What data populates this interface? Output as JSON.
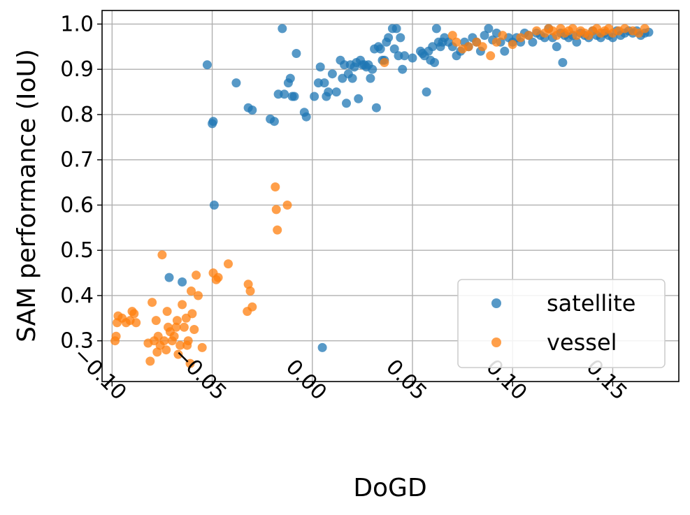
{
  "chart_data": {
    "type": "scatter",
    "xlabel": "DoGD",
    "ylabel": "SAM performance (IoU)",
    "xlim": [
      -0.105,
      0.183
    ],
    "ylim": [
      0.21,
      1.03
    ],
    "xticks": [
      -0.1,
      -0.05,
      0.0,
      0.05,
      0.1,
      0.15
    ],
    "xtick_labels": [
      "−0.10",
      "−0.05",
      "0.00",
      "0.05",
      "0.10",
      "0.15"
    ],
    "yticks": [
      0.3,
      0.4,
      0.5,
      0.6,
      0.7,
      0.8,
      0.9,
      1.0
    ],
    "ytick_labels": [
      "0.3",
      "0.4",
      "0.5",
      "0.6",
      "0.7",
      "0.8",
      "0.9",
      "1.0"
    ],
    "grid": true,
    "legend_position": "lower-right",
    "series": [
      {
        "name": "satellite",
        "color": "#1f77b4",
        "x": [
          -0.0715,
          -0.065,
          -0.0525,
          -0.05,
          -0.0495,
          -0.049,
          -0.038,
          -0.032,
          -0.03,
          -0.021,
          -0.019,
          -0.017,
          -0.015,
          -0.014,
          -0.012,
          -0.011,
          -0.01,
          -0.009,
          -0.008,
          -0.004,
          -0.003,
          0.001,
          0.003,
          0.004,
          0.005,
          0.006,
          0.007,
          0.008,
          0.01,
          0.012,
          0.014,
          0.015,
          0.016,
          0.017,
          0.018,
          0.019,
          0.02,
          0.021,
          0.022,
          0.023,
          0.024,
          0.025,
          0.026,
          0.027,
          0.028,
          0.029,
          0.03,
          0.031,
          0.032,
          0.033,
          0.034,
          0.035,
          0.036,
          0.037,
          0.038,
          0.04,
          0.041,
          0.042,
          0.043,
          0.044,
          0.045,
          0.046,
          0.05,
          0.054,
          0.055,
          0.056,
          0.057,
          0.058,
          0.059,
          0.06,
          0.061,
          0.062,
          0.063,
          0.064,
          0.065,
          0.066,
          0.068,
          0.07,
          0.072,
          0.074,
          0.076,
          0.078,
          0.08,
          0.082,
          0.084,
          0.086,
          0.088,
          0.09,
          0.092,
          0.094,
          0.096,
          0.098,
          0.1,
          0.102,
          0.104,
          0.106,
          0.108,
          0.11,
          0.112,
          0.114,
          0.116,
          0.118,
          0.12,
          0.122,
          0.124,
          0.125,
          0.126,
          0.128,
          0.13,
          0.132,
          0.134,
          0.136,
          0.138,
          0.14,
          0.142,
          0.144,
          0.146,
          0.148,
          0.15,
          0.152,
          0.154,
          0.156,
          0.158,
          0.16,
          0.162,
          0.164,
          0.166,
          0.168
        ],
        "y": [
          0.44,
          0.43,
          0.91,
          0.78,
          0.785,
          0.6,
          0.87,
          0.815,
          0.81,
          0.79,
          0.785,
          0.845,
          0.99,
          0.845,
          0.87,
          0.88,
          0.84,
          0.84,
          0.935,
          0.805,
          0.795,
          0.84,
          0.87,
          0.905,
          0.285,
          0.87,
          0.84,
          0.85,
          0.89,
          0.85,
          0.92,
          0.88,
          0.91,
          0.825,
          0.89,
          0.91,
          0.88,
          0.905,
          0.915,
          0.835,
          0.92,
          0.91,
          0.91,
          0.905,
          0.91,
          0.88,
          0.9,
          0.945,
          0.815,
          0.95,
          0.945,
          0.92,
          0.92,
          0.96,
          0.97,
          0.99,
          0.945,
          0.99,
          0.93,
          0.97,
          0.9,
          0.93,
          0.925,
          0.94,
          0.935,
          0.93,
          0.85,
          0.94,
          0.92,
          0.95,
          0.915,
          0.99,
          0.96,
          0.95,
          0.96,
          0.97,
          0.96,
          0.95,
          0.93,
          0.94,
          0.96,
          0.95,
          0.97,
          0.96,
          0.94,
          0.975,
          0.99,
          0.965,
          0.98,
          0.96,
          0.94,
          0.97,
          0.96,
          0.97,
          0.96,
          0.98,
          0.975,
          0.96,
          0.98,
          0.975,
          0.97,
          0.99,
          0.97,
          0.95,
          0.98,
          0.915,
          0.975,
          0.97,
          0.975,
          0.96,
          0.98,
          0.975,
          0.97,
          0.985,
          0.975,
          0.97,
          0.98,
          0.975,
          0.97,
          0.985,
          0.975,
          0.98,
          0.985,
          0.98,
          0.985,
          0.975,
          0.98,
          0.982
        ]
      },
      {
        "name": "vessel",
        "color": "#ff7f0e",
        "x": [
          -0.0985,
          -0.098,
          -0.0975,
          -0.097,
          -0.095,
          -0.093,
          -0.091,
          -0.09,
          -0.089,
          -0.088,
          -0.082,
          -0.081,
          -0.08,
          -0.079,
          -0.078,
          -0.0775,
          -0.077,
          -0.076,
          -0.075,
          -0.074,
          -0.073,
          -0.0725,
          -0.072,
          -0.071,
          -0.07,
          -0.069,
          -0.068,
          -0.0675,
          -0.067,
          -0.066,
          -0.065,
          -0.064,
          -0.063,
          -0.0625,
          -0.062,
          -0.061,
          -0.0605,
          -0.06,
          -0.059,
          -0.058,
          -0.057,
          -0.055,
          -0.0495,
          -0.048,
          -0.047,
          -0.042,
          -0.0325,
          -0.032,
          -0.031,
          -0.03,
          -0.0185,
          -0.018,
          -0.0175,
          -0.0125,
          0.036,
          0.07,
          0.072,
          0.075,
          0.078,
          0.082,
          0.085,
          0.089,
          0.092,
          0.095,
          0.1,
          0.104,
          0.108,
          0.112,
          0.116,
          0.118,
          0.12,
          0.122,
          0.124,
          0.126,
          0.128,
          0.13,
          0.132,
          0.134,
          0.136,
          0.138,
          0.14,
          0.142,
          0.144,
          0.146,
          0.148,
          0.15,
          0.153,
          0.156,
          0.16,
          0.163,
          0.166
        ],
        "y": [
          0.3,
          0.31,
          0.34,
          0.355,
          0.35,
          0.34,
          0.345,
          0.365,
          0.36,
          0.34,
          0.295,
          0.255,
          0.385,
          0.3,
          0.345,
          0.275,
          0.31,
          0.29,
          0.49,
          0.3,
          0.28,
          0.365,
          0.33,
          0.32,
          0.3,
          0.31,
          0.33,
          0.345,
          0.27,
          0.29,
          0.38,
          0.33,
          0.35,
          0.29,
          0.3,
          0.25,
          0.41,
          0.36,
          0.325,
          0.445,
          0.4,
          0.285,
          0.45,
          0.435,
          0.44,
          0.47,
          0.365,
          0.425,
          0.41,
          0.375,
          0.64,
          0.59,
          0.545,
          0.6,
          0.915,
          0.975,
          0.96,
          0.945,
          0.95,
          0.96,
          0.95,
          0.93,
          0.96,
          0.975,
          0.955,
          0.97,
          0.975,
          0.985,
          0.98,
          0.99,
          0.985,
          0.975,
          0.99,
          0.98,
          0.985,
          0.99,
          0.975,
          0.985,
          0.98,
          0.975,
          0.985,
          0.99,
          0.98,
          0.985,
          0.99,
          0.98,
          0.985,
          0.99,
          0.985,
          0.98,
          0.99
        ]
      }
    ]
  }
}
